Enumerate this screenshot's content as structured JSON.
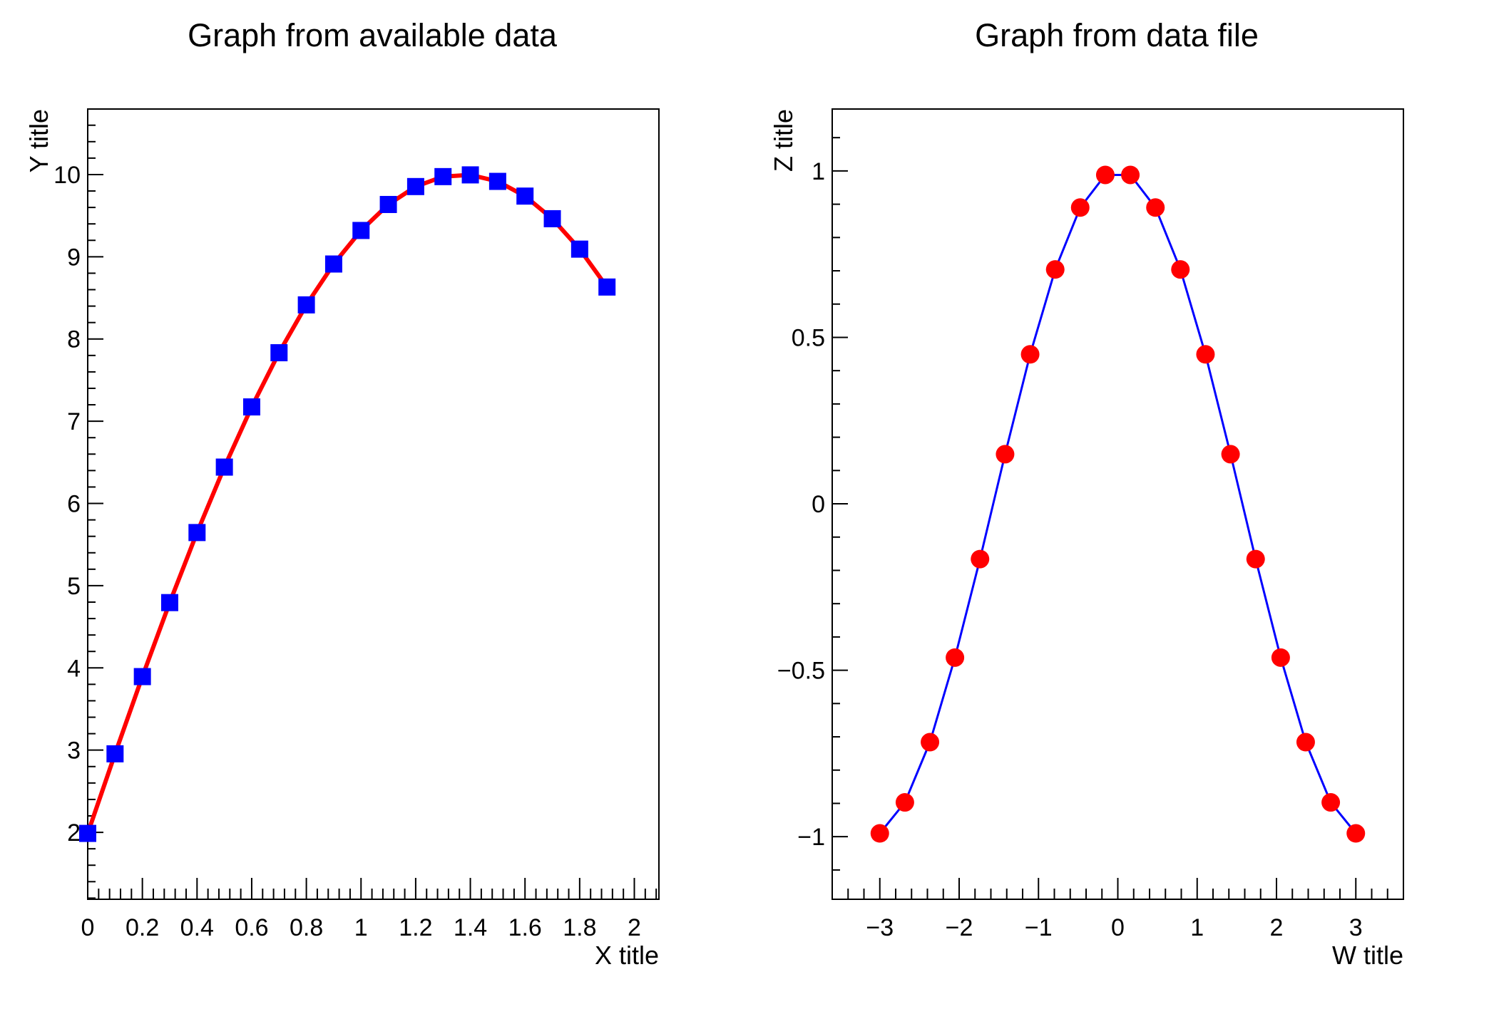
{
  "canvas": {
    "background": "#ffffff",
    "frame_color": "#000000"
  },
  "chart_data": [
    {
      "type": "line",
      "title": "Graph from available data",
      "xlabel": "X title",
      "ylabel": "Y title",
      "legend_position": "none",
      "grid": false,
      "x_range": [
        0,
        2.09
      ],
      "y_range": [
        1.186,
        10.797
      ],
      "x_major_ticks": [
        0,
        0.2,
        0.4,
        0.6,
        0.8,
        1,
        1.2,
        1.4,
        1.6,
        1.8,
        2
      ],
      "x_major_labels": [
        "0",
        "0.2",
        "0.4",
        "0.6",
        "0.8",
        "1",
        "1.2",
        "1.4",
        "1.6",
        "1.8",
        "2"
      ],
      "x_minor_step": 0.04,
      "y_major_ticks": [
        2,
        3,
        4,
        5,
        6,
        7,
        8,
        9,
        10
      ],
      "y_major_labels": [
        "2",
        "3",
        "4",
        "5",
        "6",
        "7",
        "8",
        "9",
        "10"
      ],
      "y_minor_step": 0.2,
      "line_color": "#ff0000",
      "line_width": 6,
      "marker_shape": "square",
      "marker_color": "#0000ff",
      "marker_size": 24,
      "x": [
        0,
        0.1,
        0.2,
        0.3,
        0.4,
        0.5,
        0.6,
        0.7,
        0.8,
        0.9,
        1.0,
        1.1,
        1.2,
        1.3,
        1.4,
        1.5,
        1.6,
        1.7,
        1.8,
        1.9
      ],
      "y": [
        1.987,
        2.955,
        3.894,
        4.794,
        5.646,
        6.442,
        7.174,
        7.833,
        8.415,
        8.912,
        9.32,
        9.636,
        9.854,
        9.975,
        9.996,
        9.917,
        9.738,
        9.463,
        9.093,
        8.632
      ]
    },
    {
      "type": "line",
      "title": "Graph from data file",
      "xlabel": "W title",
      "ylabel": "Z title",
      "legend_position": "none",
      "grid": false,
      "x_range": [
        -3.6,
        3.6
      ],
      "y_range": [
        -1.188,
        1.186
      ],
      "x_major_ticks": [
        -3,
        -2,
        -1,
        0,
        1,
        2,
        3
      ],
      "x_major_labels": [
        "−3",
        "−2",
        "−1",
        "0",
        "1",
        "2",
        "3"
      ],
      "x_minor_step": 0.2,
      "y_major_ticks": [
        -1,
        -0.5,
        0,
        0.5,
        1
      ],
      "y_major_labels": [
        "−1",
        "−0.5",
        "0",
        "0.5",
        "1"
      ],
      "y_minor_step": 0.1,
      "line_color": "#0000ff",
      "line_width": 3,
      "marker_shape": "circle",
      "marker_color": "#ff0000",
      "marker_size": 26,
      "x": [
        -3.0,
        -2.684,
        -2.368,
        -2.053,
        -1.737,
        -1.421,
        -1.105,
        -0.789,
        -0.474,
        -0.158,
        0.158,
        0.474,
        0.789,
        1.105,
        1.421,
        1.737,
        2.053,
        2.368,
        2.684,
        3.0
      ],
      "y": [
        -0.99,
        -0.897,
        -0.716,
        -0.462,
        -0.166,
        0.149,
        0.449,
        0.704,
        0.89,
        0.988,
        0.988,
        0.89,
        0.704,
        0.449,
        0.149,
        -0.166,
        -0.462,
        -0.716,
        -0.897,
        -0.99
      ]
    }
  ]
}
